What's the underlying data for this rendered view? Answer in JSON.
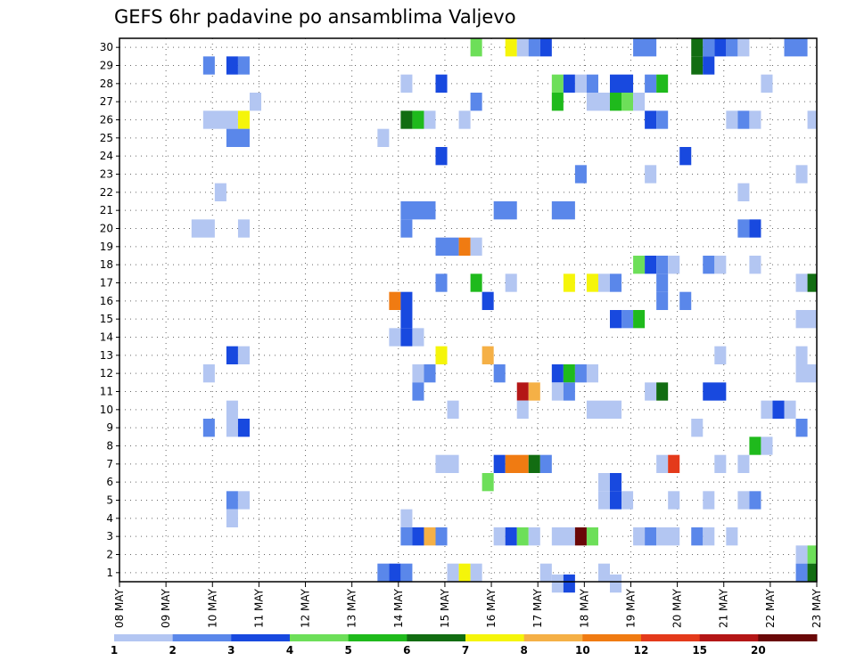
{
  "chart_data": {
    "type": "heatmap",
    "title": "GEFS 6hr padavine po ansamblima Valjevo",
    "xlabel": "",
    "ylabel": "",
    "x_ticks": [
      "08 MAY",
      "09 MAY",
      "10 MAY",
      "11 MAY",
      "12 MAY",
      "13 MAY",
      "14 MAY",
      "15 MAY",
      "16 MAY",
      "17 MAY",
      "18 MAY",
      "19 MAY",
      "20 MAY",
      "21 MAY",
      "22 MAY",
      "23 MAY"
    ],
    "y_ticks": [
      "1",
      "2",
      "3",
      "4",
      "5",
      "6",
      "7",
      "8",
      "9",
      "10",
      "11",
      "12",
      "13",
      "14",
      "15",
      "16",
      "17",
      "18",
      "19",
      "20",
      "21",
      "22",
      "23",
      "24",
      "25",
      "26",
      "27",
      "28",
      "29",
      "30"
    ],
    "x_range_days": [
      0,
      15
    ],
    "y_range": [
      0.5,
      30.5
    ],
    "grid": true,
    "colorbar": {
      "levels": [
        "1",
        "2",
        "3",
        "4",
        "5",
        "6",
        "7",
        "8",
        "10",
        "12",
        "15",
        "20"
      ],
      "colors": [
        "#b3c6f2",
        "#5a87ea",
        "#1849df",
        "#6ddf59",
        "#1fba1c",
        "#126d12",
        "#f5f50a",
        "#f5b046",
        "#f07b12",
        "#e43a1b",
        "#b41616",
        "#6a0808"
      ]
    },
    "cells": [
      [
        30,
        7.55,
        0.25,
        3
      ],
      [
        30,
        8.3,
        0.25,
        6
      ],
      [
        30,
        8.55,
        0.25,
        0
      ],
      [
        30,
        8.8,
        0.25,
        1
      ],
      [
        30,
        9.05,
        0.25,
        2
      ],
      [
        30,
        11.05,
        0.5,
        1
      ],
      [
        30,
        12.3,
        0.25,
        5
      ],
      [
        30,
        12.55,
        0.25,
        1
      ],
      [
        30,
        12.8,
        0.25,
        2
      ],
      [
        30,
        13.05,
        0.25,
        1
      ],
      [
        30,
        13.3,
        0.25,
        0
      ],
      [
        30,
        14.3,
        0.5,
        1
      ],
      [
        29,
        1.8,
        0.25,
        1
      ],
      [
        29,
        2.3,
        0.25,
        2
      ],
      [
        29,
        2.55,
        0.25,
        1
      ],
      [
        29,
        12.3,
        0.25,
        5
      ],
      [
        29,
        12.55,
        0.25,
        2
      ],
      [
        28,
        6.05,
        0.25,
        0
      ],
      [
        28,
        6.8,
        0.25,
        2
      ],
      [
        28,
        9.3,
        0.25,
        3
      ],
      [
        28,
        9.55,
        0.25,
        2
      ],
      [
        28,
        9.8,
        0.25,
        0
      ],
      [
        28,
        10.05,
        0.25,
        1
      ],
      [
        28,
        10.55,
        0.5,
        2
      ],
      [
        28,
        11.3,
        0.25,
        1
      ],
      [
        28,
        11.55,
        0.25,
        4
      ],
      [
        28,
        13.8,
        0.25,
        0
      ],
      [
        27,
        2.8,
        0.25,
        0
      ],
      [
        27,
        7.55,
        0.25,
        1
      ],
      [
        27,
        9.3,
        0.25,
        4
      ],
      [
        27,
        10.05,
        0.5,
        0
      ],
      [
        27,
        10.55,
        0.25,
        4
      ],
      [
        27,
        10.8,
        0.25,
        3
      ],
      [
        27,
        11.05,
        0.25,
        0
      ],
      [
        26,
        1.8,
        0.75,
        0
      ],
      [
        26,
        2.55,
        0.25,
        6
      ],
      [
        26,
        6.05,
        0.25,
        5
      ],
      [
        26,
        6.3,
        0.25,
        4
      ],
      [
        26,
        6.55,
        0.25,
        0
      ],
      [
        26,
        7.3,
        0.25,
        0
      ],
      [
        26,
        11.3,
        0.25,
        2
      ],
      [
        26,
        11.55,
        0.25,
        1
      ],
      [
        26,
        13.05,
        0.25,
        0
      ],
      [
        26,
        13.3,
        0.25,
        1
      ],
      [
        26,
        13.55,
        0.25,
        0
      ],
      [
        26,
        14.8,
        0.2,
        0
      ],
      [
        25,
        2.3,
        0.5,
        1
      ],
      [
        25,
        5.55,
        0.25,
        0
      ],
      [
        24,
        6.8,
        0.25,
        2
      ],
      [
        24,
        12.05,
        0.25,
        2
      ],
      [
        23,
        9.8,
        0.25,
        1
      ],
      [
        23,
        11.3,
        0.25,
        0
      ],
      [
        23,
        14.55,
        0.25,
        0
      ],
      [
        22,
        2.05,
        0.25,
        0
      ],
      [
        22,
        13.3,
        0.25,
        0
      ],
      [
        21,
        6.05,
        0.75,
        1
      ],
      [
        21,
        8.05,
        0.5,
        1
      ],
      [
        21,
        9.3,
        0.5,
        1
      ],
      [
        20,
        1.55,
        0.5,
        0
      ],
      [
        20,
        2.55,
        0.25,
        0
      ],
      [
        20,
        6.05,
        0.25,
        1
      ],
      [
        20,
        13.3,
        0.25,
        1
      ],
      [
        20,
        13.55,
        0.25,
        2
      ],
      [
        19,
        6.8,
        0.5,
        1
      ],
      [
        19,
        7.3,
        0.25,
        8
      ],
      [
        19,
        7.55,
        0.25,
        0
      ],
      [
        18,
        11.05,
        0.25,
        3
      ],
      [
        18,
        11.3,
        0.25,
        2
      ],
      [
        18,
        11.55,
        0.25,
        1
      ],
      [
        18,
        11.8,
        0.25,
        0
      ],
      [
        18,
        12.55,
        0.25,
        1
      ],
      [
        18,
        12.8,
        0.25,
        0
      ],
      [
        18,
        13.55,
        0.25,
        0
      ],
      [
        17,
        6.8,
        0.25,
        1
      ],
      [
        17,
        7.55,
        0.25,
        4
      ],
      [
        17,
        8.3,
        0.25,
        0
      ],
      [
        17,
        9.55,
        0.25,
        6
      ],
      [
        17,
        10.05,
        0.25,
        6
      ],
      [
        17,
        10.3,
        0.25,
        0
      ],
      [
        17,
        10.55,
        0.25,
        1
      ],
      [
        17,
        11.55,
        0.25,
        1
      ],
      [
        17,
        14.55,
        0.25,
        0
      ],
      [
        17,
        14.8,
        0.2,
        5
      ],
      [
        16,
        5.8,
        0.25,
        8
      ],
      [
        16,
        6.05,
        0.25,
        2
      ],
      [
        16,
        7.8,
        0.25,
        2
      ],
      [
        16,
        11.55,
        0.25,
        1
      ],
      [
        16,
        12.05,
        0.25,
        1
      ],
      [
        15,
        6.05,
        0.25,
        2
      ],
      [
        15,
        10.55,
        0.25,
        2
      ],
      [
        15,
        10.8,
        0.25,
        1
      ],
      [
        15,
        11.05,
        0.25,
        4
      ],
      [
        15,
        14.55,
        0.45,
        0
      ],
      [
        14,
        5.8,
        0.25,
        0
      ],
      [
        14,
        6.05,
        0.25,
        2
      ],
      [
        14,
        6.3,
        0.25,
        0
      ],
      [
        13,
        2.3,
        0.25,
        2
      ],
      [
        13,
        2.55,
        0.25,
        0
      ],
      [
        13,
        6.8,
        0.25,
        6
      ],
      [
        13,
        7.8,
        0.25,
        7
      ],
      [
        13,
        12.8,
        0.25,
        0
      ],
      [
        13,
        14.55,
        0.25,
        0
      ],
      [
        12,
        1.8,
        0.25,
        0
      ],
      [
        12,
        6.3,
        0.25,
        0
      ],
      [
        12,
        6.55,
        0.25,
        1
      ],
      [
        12,
        8.05,
        0.25,
        1
      ],
      [
        12,
        9.3,
        0.25,
        2
      ],
      [
        12,
        9.55,
        0.25,
        4
      ],
      [
        12,
        9.8,
        0.25,
        1
      ],
      [
        12,
        10.05,
        0.25,
        0
      ],
      [
        12,
        14.55,
        0.45,
        0
      ],
      [
        11,
        6.3,
        0.25,
        1
      ],
      [
        11,
        8.55,
        0.25,
        10
      ],
      [
        11,
        8.8,
        0.25,
        7
      ],
      [
        11,
        9.3,
        0.25,
        0
      ],
      [
        11,
        9.55,
        0.25,
        1
      ],
      [
        11,
        11.3,
        0.25,
        0
      ],
      [
        11,
        11.55,
        0.25,
        5
      ],
      [
        11,
        12.55,
        0.5,
        2
      ],
      [
        10,
        2.3,
        0.25,
        0
      ],
      [
        10,
        7.05,
        0.25,
        0
      ],
      [
        10,
        8.55,
        0.25,
        0
      ],
      [
        10,
        10.05,
        0.75,
        0
      ],
      [
        10,
        13.8,
        0.25,
        0
      ],
      [
        10,
        14.05,
        0.25,
        2
      ],
      [
        10,
        14.3,
        0.25,
        0
      ],
      [
        9,
        1.8,
        0.25,
        1
      ],
      [
        9,
        2.3,
        0.25,
        0
      ],
      [
        9,
        2.55,
        0.25,
        2
      ],
      [
        9,
        12.3,
        0.25,
        0
      ],
      [
        9,
        14.55,
        0.25,
        1
      ],
      [
        8,
        13.55,
        0.25,
        4
      ],
      [
        8,
        13.8,
        0.25,
        0
      ],
      [
        7,
        6.8,
        0.5,
        0
      ],
      [
        7,
        8.05,
        0.25,
        2
      ],
      [
        7,
        8.3,
        0.5,
        8
      ],
      [
        7,
        8.8,
        0.25,
        5
      ],
      [
        7,
        9.05,
        0.25,
        1
      ],
      [
        7,
        11.55,
        0.25,
        0
      ],
      [
        7,
        11.8,
        0.25,
        9
      ],
      [
        7,
        12.8,
        0.25,
        0
      ],
      [
        7,
        13.3,
        0.25,
        0
      ],
      [
        6,
        7.8,
        0.25,
        3
      ],
      [
        6,
        10.3,
        0.25,
        0
      ],
      [
        6,
        10.55,
        0.25,
        2
      ],
      [
        5,
        2.3,
        0.25,
        1
      ],
      [
        5,
        2.55,
        0.25,
        0
      ],
      [
        5,
        10.3,
        0.25,
        0
      ],
      [
        5,
        10.55,
        0.25,
        2
      ],
      [
        5,
        10.8,
        0.25,
        0
      ],
      [
        5,
        11.8,
        0.25,
        0
      ],
      [
        5,
        12.55,
        0.25,
        0
      ],
      [
        5,
        13.3,
        0.25,
        0
      ],
      [
        5,
        13.55,
        0.25,
        1
      ],
      [
        4,
        2.3,
        0.25,
        0
      ],
      [
        4,
        6.05,
        0.25,
        0
      ],
      [
        3,
        6.05,
        0.25,
        1
      ],
      [
        3,
        6.3,
        0.25,
        2
      ],
      [
        3,
        6.55,
        0.25,
        7
      ],
      [
        3,
        6.8,
        0.25,
        1
      ],
      [
        3,
        8.05,
        0.25,
        0
      ],
      [
        3,
        8.3,
        0.25,
        2
      ],
      [
        3,
        8.55,
        0.25,
        3
      ],
      [
        3,
        8.8,
        0.25,
        0
      ],
      [
        3,
        9.3,
        0.5,
        0
      ],
      [
        3,
        9.8,
        0.25,
        11
      ],
      [
        3,
        10.05,
        0.25,
        3
      ],
      [
        3,
        11.05,
        0.25,
        0
      ],
      [
        3,
        11.3,
        0.25,
        1
      ],
      [
        3,
        11.55,
        0.5,
        0
      ],
      [
        3,
        12.3,
        0.25,
        1
      ],
      [
        3,
        12.55,
        0.25,
        0
      ],
      [
        3,
        13.05,
        0.25,
        0
      ],
      [
        2,
        14.55,
        0.25,
        0
      ],
      [
        2,
        14.8,
        0.2,
        3
      ],
      [
        1,
        5.55,
        0.25,
        1
      ],
      [
        1,
        5.8,
        0.25,
        2
      ],
      [
        1,
        6.05,
        0.25,
        1
      ],
      [
        1,
        7.05,
        0.25,
        0
      ],
      [
        1,
        7.3,
        0.25,
        6
      ],
      [
        1,
        7.55,
        0.25,
        0
      ],
      [
        1,
        9.05,
        0.25,
        0
      ],
      [
        1,
        10.3,
        0.25,
        0
      ],
      [
        1,
        14.55,
        0.25,
        1
      ],
      [
        1,
        14.8,
        0.2,
        5
      ],
      [
        0.4,
        9.3,
        0.25,
        0
      ],
      [
        0.4,
        9.55,
        0.25,
        2
      ],
      [
        0.4,
        10.55,
        0.25,
        0
      ]
    ]
  }
}
